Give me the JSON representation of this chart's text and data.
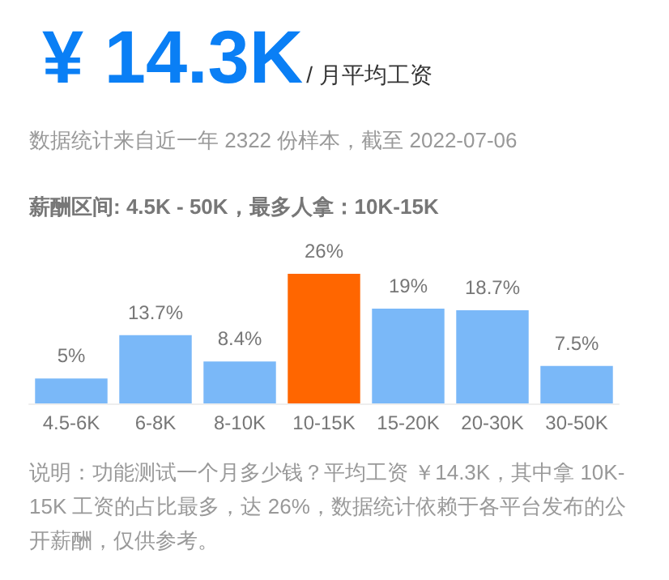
{
  "chart_data": {
    "type": "bar",
    "title": "¥ 14.3K",
    "subtitle": "/ 月平均工资",
    "annotations": [
      "数据统计来自近一年 2322 份样本，截至 2022-07-06",
      "薪酬区间: 4.5K - 50K，最多人拿：10K-15K",
      "说明：功能测试一个月多少钱？平均工资 ￥14.3K，其中拿 10K-15K 工资的占比最多，达 26%，数据统计依赖于各平台发布的公开薪酬，仅供参考。"
    ],
    "categories": [
      "4.5-6K",
      "6-8K",
      "8-10K",
      "10-15K",
      "15-20K",
      "20-30K",
      "30-50K"
    ],
    "values": [
      5,
      13.7,
      8.4,
      26,
      19,
      18.7,
      7.5
    ],
    "value_labels": [
      "5%",
      "13.7%",
      "8.4%",
      "26%",
      "19%",
      "18.7%",
      "7.5%"
    ],
    "colors": [
      "#7ab8f8",
      "#7ab8f8",
      "#7ab8f8",
      "#ff6600",
      "#7ab8f8",
      "#7ab8f8",
      "#7ab8f8"
    ]
  }
}
